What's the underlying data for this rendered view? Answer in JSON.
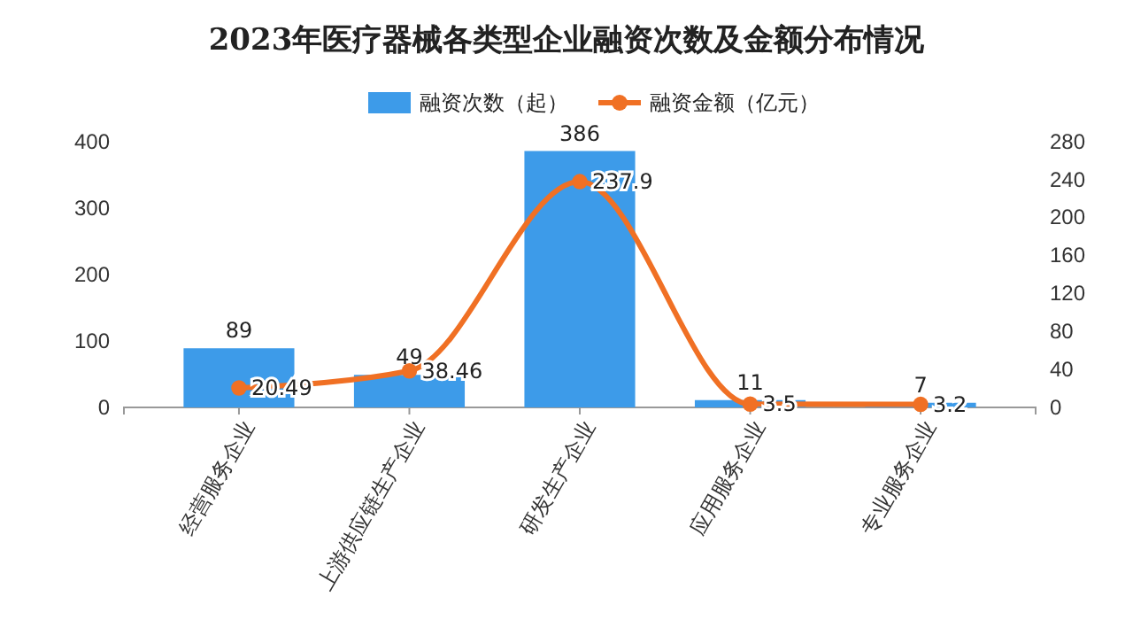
{
  "chart_data": {
    "type": "bar",
    "title": "2023年医疗器械各类型企业融资次数及金额分布情况",
    "categories": [
      "经营服务企业",
      "上游供应链生产企业",
      "研发生产企业",
      "应用服务企业",
      "专业服务企业"
    ],
    "series": [
      {
        "name": "融资次数（起）",
        "color": "#3d9be9",
        "values": [
          89,
          49,
          386,
          11,
          7
        ]
      },
      {
        "name": "融资金额（亿元）",
        "type": "line",
        "axis": "y2",
        "color": "#f07024",
        "values": [
          20.49,
          38.46,
          237.9,
          3.5,
          3.2
        ]
      }
    ],
    "ylim": [
      0,
      400
    ],
    "yticks": [
      0,
      100,
      200,
      300,
      400
    ],
    "y2lim": [
      0,
      280
    ],
    "y2ticks": [
      0,
      40,
      80,
      120,
      160,
      200,
      240,
      280
    ],
    "data_labels": true,
    "legend": "top",
    "marker": "circle",
    "grid": false
  }
}
